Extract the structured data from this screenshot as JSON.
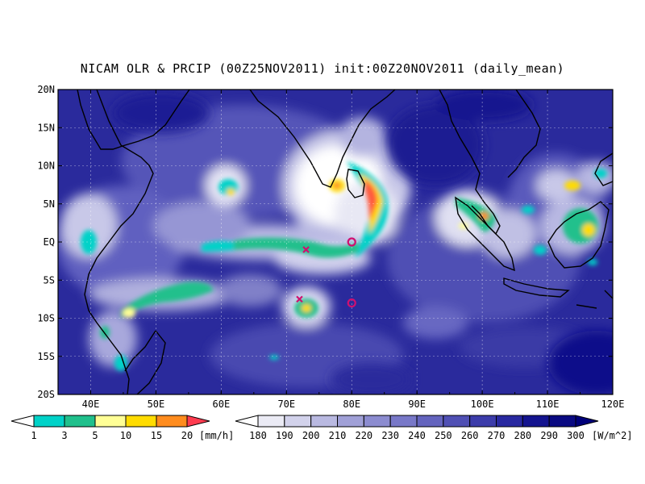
{
  "title": "NICAM OLR & PRCIP (00Z25NOV2011) init:00Z20NOV2011 (daily_mean)",
  "map": {
    "lon_range": [
      35,
      120
    ],
    "lat_range": [
      -20,
      20
    ],
    "lat_ticks": [
      "20N",
      "15N",
      "10N",
      "5N",
      "EQ",
      "5S",
      "10S",
      "15S",
      "20S"
    ],
    "lon_ticks": [
      "40E",
      "50E",
      "60E",
      "70E",
      "80E",
      "90E",
      "100E",
      "110E",
      "120E"
    ],
    "grid": "dotted",
    "markers": [
      {
        "type": "circle",
        "lon": 80,
        "lat": 0,
        "color": "#d01070"
      },
      {
        "type": "circle",
        "lon": 80,
        "lat": -8,
        "color": "#d01070"
      },
      {
        "type": "x",
        "lon": 73,
        "lat": -1,
        "color": "#d01070"
      },
      {
        "type": "x",
        "lon": 72,
        "lat": -7.5,
        "color": "#d01070"
      }
    ]
  },
  "precip_colorbar": {
    "labels": [
      "1",
      "3",
      "5",
      "10",
      "15",
      "20"
    ],
    "unit": "[mm/h]",
    "colors": [
      "#ffffff",
      "#00d2c8",
      "#20c08c",
      "#ffff96",
      "#ffdc00",
      "#ff8c1e",
      "#ff3c50"
    ]
  },
  "olr_colorbar": {
    "labels": [
      "180",
      "190",
      "200",
      "210",
      "220",
      "230",
      "240",
      "250",
      "260",
      "270",
      "280",
      "290",
      "300"
    ],
    "unit": "[W/m^2]",
    "colors": [
      "#ffffff",
      "#ebebf5",
      "#d2d2eb",
      "#b9b9e1",
      "#a0a0d7",
      "#8c8cd0",
      "#7878c8",
      "#6464be",
      "#5050b4",
      "#3c3caa",
      "#2828a0",
      "#14148f",
      "#0a0a82",
      "#00007a"
    ]
  }
}
